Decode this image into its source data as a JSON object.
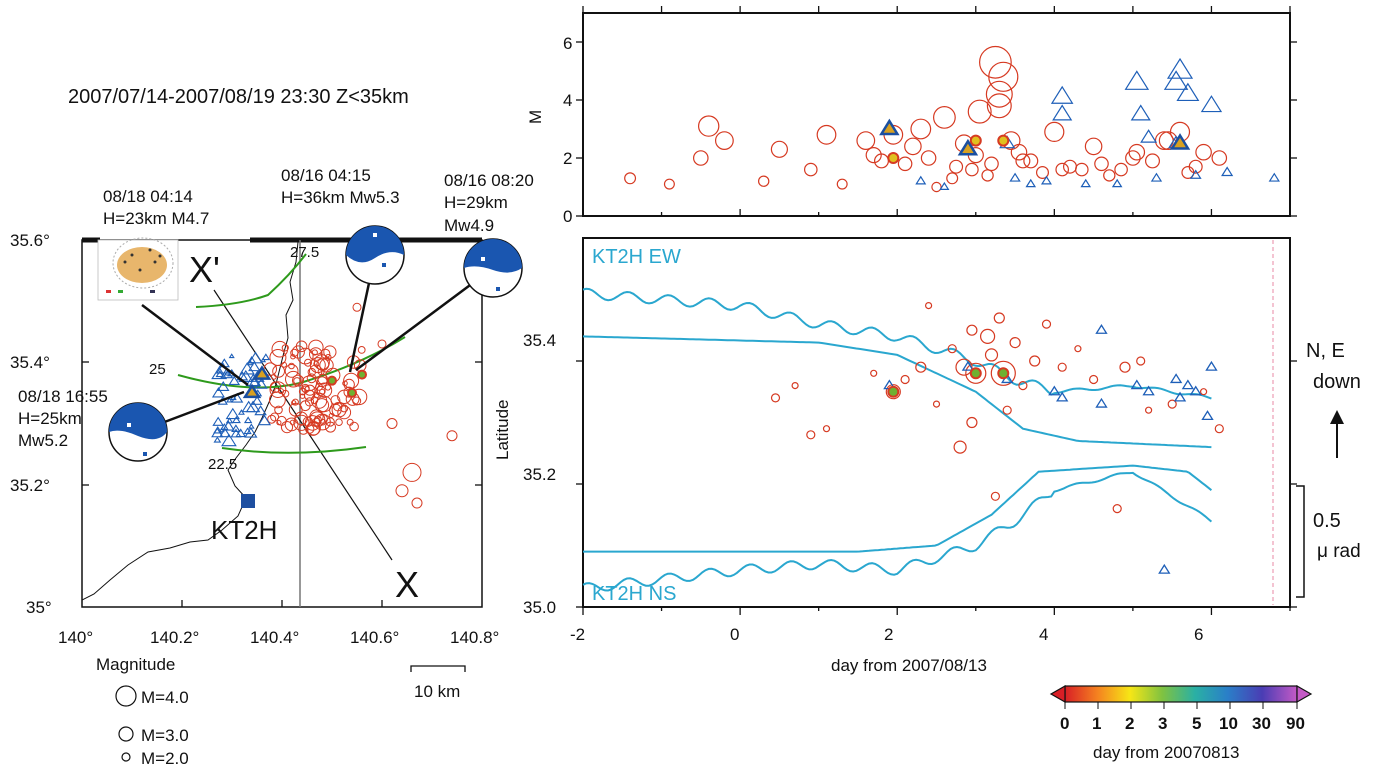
{
  "map": {
    "title": "2007/07/14-2007/08/19 23:30 Z<35km",
    "ylabel": "Latitude",
    "x_ticks": [
      "140°",
      "140.2°",
      "140.4°",
      "140.6°",
      "140.8°"
    ],
    "y_ticks": [
      "35°",
      "35.2°",
      "35.4°",
      "35.6°"
    ],
    "station": "KT2H",
    "section_start": "X'",
    "section_end": "X",
    "contours": [
      "27.5",
      "25",
      "22.5"
    ],
    "scale_bar": "10 km",
    "mechanisms": [
      {
        "date": "08/18 04:14",
        "info": "H=23km M4.7"
      },
      {
        "date": "08/16 04:15",
        "info": "H=36km Mw5.3"
      },
      {
        "date": "08/16 08:20",
        "info": "H=29km",
        "mag": "Mw4.9"
      },
      {
        "date": "08/18 16:55",
        "info": "H=25km",
        "mag": "Mw5.2"
      }
    ],
    "legend": {
      "title": "Magnitude",
      "items": [
        "M=4.0",
        "M=3.0",
        "M=2.0"
      ]
    },
    "colors": {
      "eq_red": "#d63a22",
      "tri_blue": "#1e5fb8",
      "contour": "#2e9a1c",
      "beachball": "#1a56b0"
    }
  },
  "chart_data": [
    {
      "type": "scatter",
      "title": "",
      "xlabel": "",
      "ylabel": "M",
      "xlim": [
        -2,
        7
      ],
      "ylim": [
        0,
        7
      ],
      "y_ticks": [
        "0",
        "2",
        "4",
        "6"
      ],
      "series": [
        {
          "marker": "circle",
          "x": [
            -0.4,
            -0.2,
            0.3,
            0.5,
            1.1,
            1.6,
            1.7,
            1.8,
            1.95,
            2.1,
            2.3,
            2.4,
            2.6,
            2.75,
            2.85,
            2.95,
            3.05,
            3.15,
            3.25,
            3.35,
            3.45,
            3.55,
            3.7,
            3.85,
            4.0,
            4.2,
            4.35,
            4.5,
            4.7,
            4.85,
            5.05,
            5.25,
            5.45,
            5.7,
            5.9,
            -1.4,
            -0.9,
            -0.5,
            0.9,
            1.3,
            2.2,
            2.5,
            2.7,
            3.0,
            3.2,
            3.3,
            3.6,
            4.1,
            4.6,
            5.0,
            5.4,
            5.6,
            5.8,
            6.1,
            3.3
          ],
          "values": [
            3.1,
            2.6,
            1.2,
            2.3,
            2.8,
            2.6,
            2.1,
            1.9,
            2.8,
            1.8,
            3.0,
            2.0,
            3.4,
            1.7,
            2.5,
            1.6,
            3.6,
            1.4,
            5.3,
            4.8,
            2.6,
            2.2,
            1.9,
            1.5,
            2.9,
            1.7,
            1.6,
            2.4,
            1.4,
            1.6,
            2.2,
            1.9,
            2.6,
            1.5,
            2.2,
            1.3,
            1.1,
            2.0,
            1.6,
            1.1,
            2.4,
            1.0,
            1.3,
            2.1,
            1.8,
            4.2,
            1.9,
            1.6,
            1.8,
            2.0,
            2.6,
            2.9,
            1.7,
            2.0,
            3.8
          ]
        },
        {
          "marker": "triangle",
          "x": [
            1.9,
            2.9,
            3.4,
            4.1,
            4.1,
            5.05,
            5.1,
            5.2,
            5.55,
            5.55,
            5.6,
            5.7,
            6.0,
            6.8,
            3.5,
            3.7,
            3.9,
            4.4,
            4.8,
            5.3,
            5.8,
            6.2,
            2.3,
            2.6
          ],
          "values": [
            3.0,
            2.3,
            2.5,
            4.1,
            3.5,
            4.6,
            3.5,
            2.7,
            4.6,
            2.5,
            5.0,
            4.2,
            3.8,
            1.3,
            1.3,
            1.1,
            1.2,
            1.1,
            1.1,
            1.3,
            1.4,
            1.5,
            1.2,
            1.0
          ]
        }
      ]
    },
    {
      "type": "line",
      "title": "",
      "xlabel": "day from 2007/08/13",
      "ylabel": "Latitude",
      "xlim": [
        -2,
        7
      ],
      "ylim": [
        35.0,
        35.6
      ],
      "x_ticks": [
        "-2",
        "0",
        "2",
        "4",
        "6"
      ],
      "y_ticks": [
        "35.0",
        "35.2",
        "35.4"
      ],
      "series": [
        {
          "name": "KT2H EW",
          "x": [
            -2,
            0,
            1,
            2,
            3,
            3.5,
            4,
            5,
            6
          ],
          "values": [
            35.5,
            35.48,
            35.45,
            35.43,
            35.39,
            35.36,
            35.34,
            35.35,
            35.33
          ]
        },
        {
          "name": "KT2H NS",
          "x": [
            -2,
            0,
            1,
            2,
            2.5,
            3,
            3.5,
            4,
            5,
            6
          ],
          "values": [
            35.04,
            35.07,
            35.08,
            35.07,
            35.09,
            35.11,
            35.15,
            35.2,
            35.23,
            35.15
          ]
        }
      ],
      "annotations": {
        "direction": "N, E",
        "direction2": "down",
        "scale_value": "0.5",
        "scale_unit": "μ rad"
      }
    }
  ],
  "colorbar": {
    "ticks": [
      "0",
      "1",
      "2",
      "3",
      "5",
      "10",
      "30",
      "90"
    ],
    "label": "day from 20070813"
  }
}
